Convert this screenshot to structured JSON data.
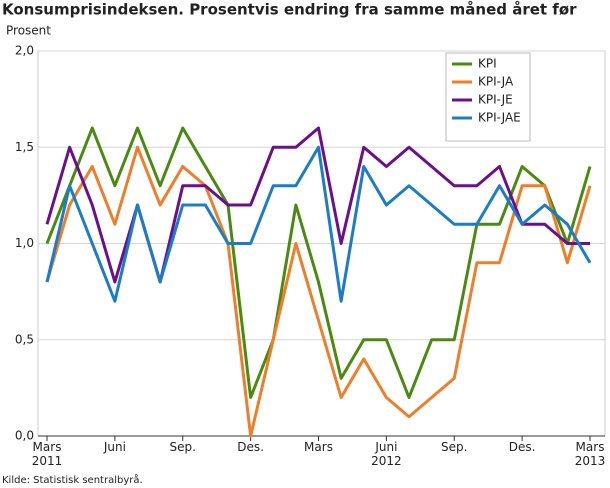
{
  "chart_data": {
    "type": "line",
    "title": "Konsumprisindeksen. Prosentvis endring fra samme måned året før",
    "y_label": "Prosent",
    "source": "Kilde: Statistisk sentralbyrå.",
    "categories": [
      "Mars\n2011",
      null,
      null,
      "Juni",
      null,
      null,
      "Sep.",
      null,
      null,
      "Des.",
      null,
      null,
      "Mars",
      null,
      null,
      "Juni\n2012",
      null,
      null,
      "Sep.",
      null,
      null,
      "Des.",
      null,
      null,
      "Mars\n2013"
    ],
    "ylim": [
      0,
      2
    ],
    "yticks": [
      {
        "value": 0,
        "label": "0,0"
      },
      {
        "value": 0.5,
        "label": "0,5"
      },
      {
        "value": 1,
        "label": "1,0"
      },
      {
        "value": 1.5,
        "label": "1,5"
      },
      {
        "value": 2,
        "label": "2,0"
      }
    ],
    "grid": true,
    "legend": "top-right",
    "series": [
      {
        "name": "KPI",
        "color": "#4a8a10",
        "values": [
          1.0,
          1.3,
          1.6,
          1.3,
          1.6,
          1.3,
          1.6,
          1.4,
          1.2,
          0.2,
          0.5,
          1.2,
          0.8,
          0.3,
          0.5,
          0.5,
          0.2,
          0.5,
          0.5,
          1.1,
          1.1,
          1.4,
          1.3,
          1.0,
          1.4
        ]
      },
      {
        "name": "KPI-JA",
        "color": "#ef7d2a",
        "values": [
          0.8,
          1.2,
          1.4,
          1.1,
          1.5,
          1.2,
          1.4,
          1.3,
          1.0,
          0.0,
          0.5,
          1.0,
          0.6,
          0.2,
          0.4,
          0.2,
          0.1,
          0.2,
          0.3,
          0.9,
          0.9,
          1.3,
          1.3,
          0.9,
          1.3
        ]
      },
      {
        "name": "KPI-JE",
        "color": "#6b0f8c",
        "values": [
          1.1,
          1.5,
          1.2,
          0.8,
          1.2,
          0.8,
          1.3,
          1.3,
          1.2,
          1.2,
          1.5,
          1.5,
          1.6,
          1.0,
          1.5,
          1.4,
          1.5,
          1.4,
          1.3,
          1.3,
          1.4,
          1.1,
          1.1,
          1.0,
          1.0
        ]
      },
      {
        "name": "KPI-JAE",
        "color": "#1b7cc7",
        "values": [
          0.8,
          1.3,
          1.0,
          0.7,
          1.2,
          0.8,
          1.2,
          1.2,
          1.0,
          1.0,
          1.3,
          1.3,
          1.5,
          0.7,
          1.4,
          1.2,
          1.3,
          1.2,
          1.1,
          1.1,
          1.3,
          1.1,
          1.2,
          1.1,
          0.9
        ]
      }
    ]
  }
}
